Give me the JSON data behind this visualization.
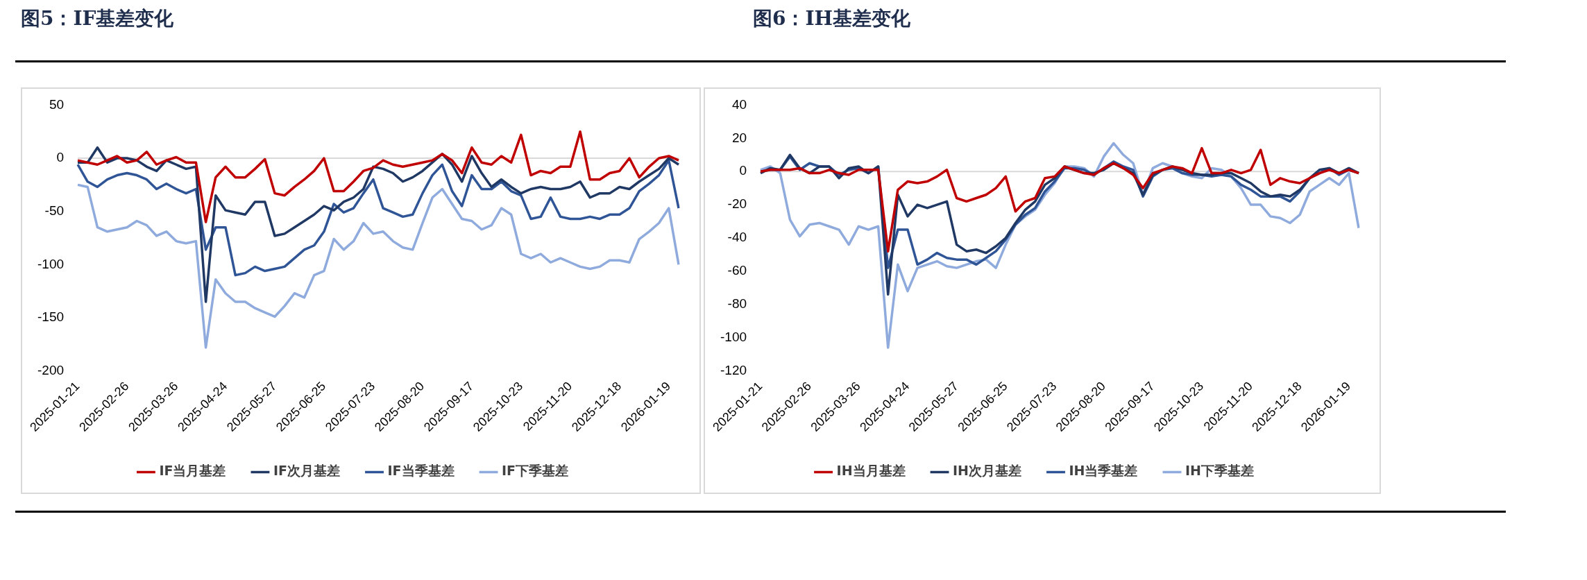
{
  "chart_data": [
    {
      "type": "line",
      "title": "图5：IF基差变化",
      "legend": "bottom",
      "categories": [
        "2025-01-21",
        null,
        null,
        null,
        null,
        "2025-02-26",
        null,
        null,
        null,
        null,
        "2025-03-26",
        null,
        null,
        null,
        null,
        "2025-04-24",
        null,
        null,
        null,
        null,
        "2025-05-27",
        null,
        null,
        null,
        null,
        "2025-06-25",
        null,
        null,
        null,
        null,
        "2025-07-23",
        null,
        null,
        null,
        null,
        "2025-08-20",
        null,
        null,
        null,
        null,
        "2025-09-17",
        null,
        null,
        null,
        null,
        "2025-10-23",
        null,
        null,
        null,
        null,
        "2025-11-20",
        null,
        null,
        null,
        null,
        "2025-12-18",
        null,
        null,
        null,
        null,
        "2026-01-19",
        null
      ],
      "ylim": [
        -200,
        50
      ],
      "yticks": [
        -200,
        -150,
        -100,
        -50,
        0,
        50
      ],
      "series": [
        {
          "name": "IF当月基差",
          "color": "#c00000",
          "values": [
            -2,
            -4,
            -6,
            -2,
            2,
            -4,
            -2,
            6,
            -6,
            -2,
            1,
            -4,
            -4,
            -60,
            -18,
            -8,
            -18,
            -18,
            -10,
            -1,
            -33,
            -35,
            -27,
            -20,
            -12,
            0,
            -31,
            -31,
            -22,
            -12,
            -9,
            -2,
            -6,
            -8,
            -6,
            -4,
            -2,
            4,
            -2,
            -14,
            10,
            -4,
            -6,
            2,
            -4,
            22,
            -16,
            -12,
            -14,
            -8,
            -8,
            25,
            -20,
            -20,
            -14,
            -12,
            0,
            -18,
            -8,
            0,
            2,
            -2
          ]
        },
        {
          "name": "IF次月基差",
          "color": "#203864",
          "values": [
            -4,
            -4,
            10,
            -4,
            0,
            0,
            -2,
            -8,
            -12,
            -2,
            -6,
            -10,
            -8,
            -135,
            -35,
            -49,
            -51,
            -53,
            -41,
            -41,
            -73,
            -71,
            -65,
            -59,
            -53,
            -45,
            -49,
            -41,
            -37,
            -29,
            -8,
            -10,
            -14,
            -22,
            -18,
            -12,
            -4,
            4,
            -6,
            -22,
            2,
            -14,
            -27,
            -20,
            -27,
            -33,
            -29,
            -27,
            -29,
            -29,
            -27,
            -22,
            -37,
            -33,
            -33,
            -27,
            -29,
            -22,
            -16,
            -10,
            0,
            -6
          ]
        },
        {
          "name": "IF当季基差",
          "color": "#2f5597",
          "values": [
            -6,
            -22,
            -27,
            -20,
            -16,
            -14,
            -16,
            -20,
            -29,
            -24,
            -29,
            -33,
            -29,
            -86,
            -65,
            -65,
            -110,
            -108,
            -102,
            -106,
            -104,
            -102,
            -94,
            -86,
            -82,
            -69,
            -43,
            -51,
            -47,
            -33,
            -20,
            -47,
            -51,
            -55,
            -53,
            -33,
            -16,
            -6,
            -31,
            -45,
            -16,
            -29,
            -29,
            -22,
            -31,
            -35,
            -57,
            -55,
            -37,
            -55,
            -57,
            -57,
            -55,
            -57,
            -53,
            -53,
            -47,
            -31,
            -24,
            -16,
            -2,
            -47
          ]
        },
        {
          "name": "IF下季基差",
          "color": "#8faadc",
          "values": [
            -25,
            -27,
            -65,
            -69,
            -67,
            -65,
            -59,
            -63,
            -73,
            -69,
            -78,
            -80,
            -78,
            -178,
            -114,
            -127,
            -135,
            -135,
            -141,
            -145,
            -149,
            -139,
            -127,
            -131,
            -110,
            -106,
            -76,
            -86,
            -78,
            -61,
            -71,
            -69,
            -78,
            -84,
            -86,
            -61,
            -37,
            -29,
            -43,
            -57,
            -59,
            -67,
            -63,
            -47,
            -53,
            -90,
            -94,
            -90,
            -98,
            -94,
            -98,
            -102,
            -104,
            -102,
            -96,
            -96,
            -98,
            -76,
            -69,
            -61,
            -47,
            -100
          ]
        }
      ]
    },
    {
      "type": "line",
      "title": "图6：IH基差变化",
      "legend": "bottom",
      "categories": [
        "2025-01-21",
        null,
        null,
        null,
        null,
        "2025-02-26",
        null,
        null,
        null,
        null,
        "2025-03-26",
        null,
        null,
        null,
        null,
        "2025-04-24",
        null,
        null,
        null,
        null,
        "2025-05-27",
        null,
        null,
        null,
        null,
        "2025-06-25",
        null,
        null,
        null,
        null,
        "2025-07-23",
        null,
        null,
        null,
        null,
        "2025-08-20",
        null,
        null,
        null,
        null,
        "2025-09-17",
        null,
        null,
        null,
        null,
        "2025-10-23",
        null,
        null,
        null,
        null,
        "2025-11-20",
        null,
        null,
        null,
        null,
        "2025-12-18",
        null,
        null,
        null,
        null,
        "2026-01-19",
        null
      ],
      "ylim": [
        -120,
        40
      ],
      "yticks": [
        -120,
        -100,
        -80,
        -60,
        -40,
        -20,
        0,
        20,
        40
      ],
      "series": [
        {
          "name": "IH当月基差",
          "color": "#c00000",
          "values": [
            0,
            1,
            1,
            1,
            2,
            -1,
            -1,
            1,
            -1,
            -2,
            1,
            1,
            1,
            -48,
            -11,
            -6,
            -7,
            -6,
            -3,
            1,
            -16,
            -18,
            -16,
            -14,
            -10,
            -3,
            -24,
            -18,
            -16,
            -4,
            -3,
            3,
            1,
            -1,
            -2,
            2,
            5,
            2,
            -2,
            -10,
            -1,
            1,
            3,
            2,
            -1,
            14,
            -1,
            -1,
            1,
            -1,
            1,
            13,
            -8,
            -4,
            -6,
            -7,
            -4,
            -1,
            1,
            -1,
            1,
            -1
          ]
        },
        {
          "name": "IH次月基差",
          "color": "#203864",
          "values": [
            -1,
            2,
            1,
            10,
            2,
            -1,
            3,
            3,
            -4,
            2,
            3,
            -1,
            3,
            -74,
            -14,
            -27,
            -20,
            -22,
            -20,
            -18,
            -44,
            -48,
            -47,
            -49,
            -45,
            -40,
            -31,
            -23,
            -18,
            -8,
            -4,
            3,
            1,
            -1,
            -1,
            1,
            5,
            2,
            -1,
            -14,
            -2,
            1,
            3,
            1,
            -1,
            -2,
            -2,
            -1,
            -1,
            -4,
            -7,
            -12,
            -15,
            -14,
            -15,
            -11,
            -4,
            1,
            2,
            -1,
            2,
            -1
          ]
        },
        {
          "name": "IH当季基差",
          "color": "#2f5597",
          "values": [
            0,
            1,
            1,
            9,
            1,
            5,
            3,
            3,
            -2,
            1,
            2,
            -1,
            3,
            -58,
            -35,
            -35,
            -56,
            -53,
            -49,
            -52,
            -53,
            -53,
            -56,
            -52,
            -48,
            -41,
            -32,
            -26,
            -22,
            -12,
            -6,
            2,
            2,
            1,
            -2,
            2,
            6,
            3,
            1,
            -15,
            -3,
            1,
            2,
            -1,
            -2,
            -2,
            -3,
            -2,
            -3,
            -8,
            -11,
            -15,
            -15,
            -15,
            -18,
            -12,
            -4,
            -1,
            2,
            -2,
            1,
            -1
          ]
        },
        {
          "name": "IH下季基差",
          "color": "#8faadc",
          "values": [
            1,
            3,
            -1,
            -29,
            -39,
            -32,
            -31,
            -33,
            -35,
            -44,
            -33,
            -35,
            -33,
            -106,
            -56,
            -72,
            -58,
            -56,
            -54,
            -57,
            -58,
            -56,
            -54,
            -53,
            -58,
            -44,
            -32,
            -27,
            -23,
            -14,
            -7,
            3,
            3,
            2,
            -3,
            9,
            17,
            10,
            5,
            -14,
            2,
            5,
            3,
            -1,
            -3,
            -4,
            2,
            1,
            -3,
            -10,
            -20,
            -20,
            -27,
            -28,
            -31,
            -26,
            -12,
            -8,
            -4,
            -8,
            -1,
            -34
          ]
        }
      ]
    }
  ]
}
